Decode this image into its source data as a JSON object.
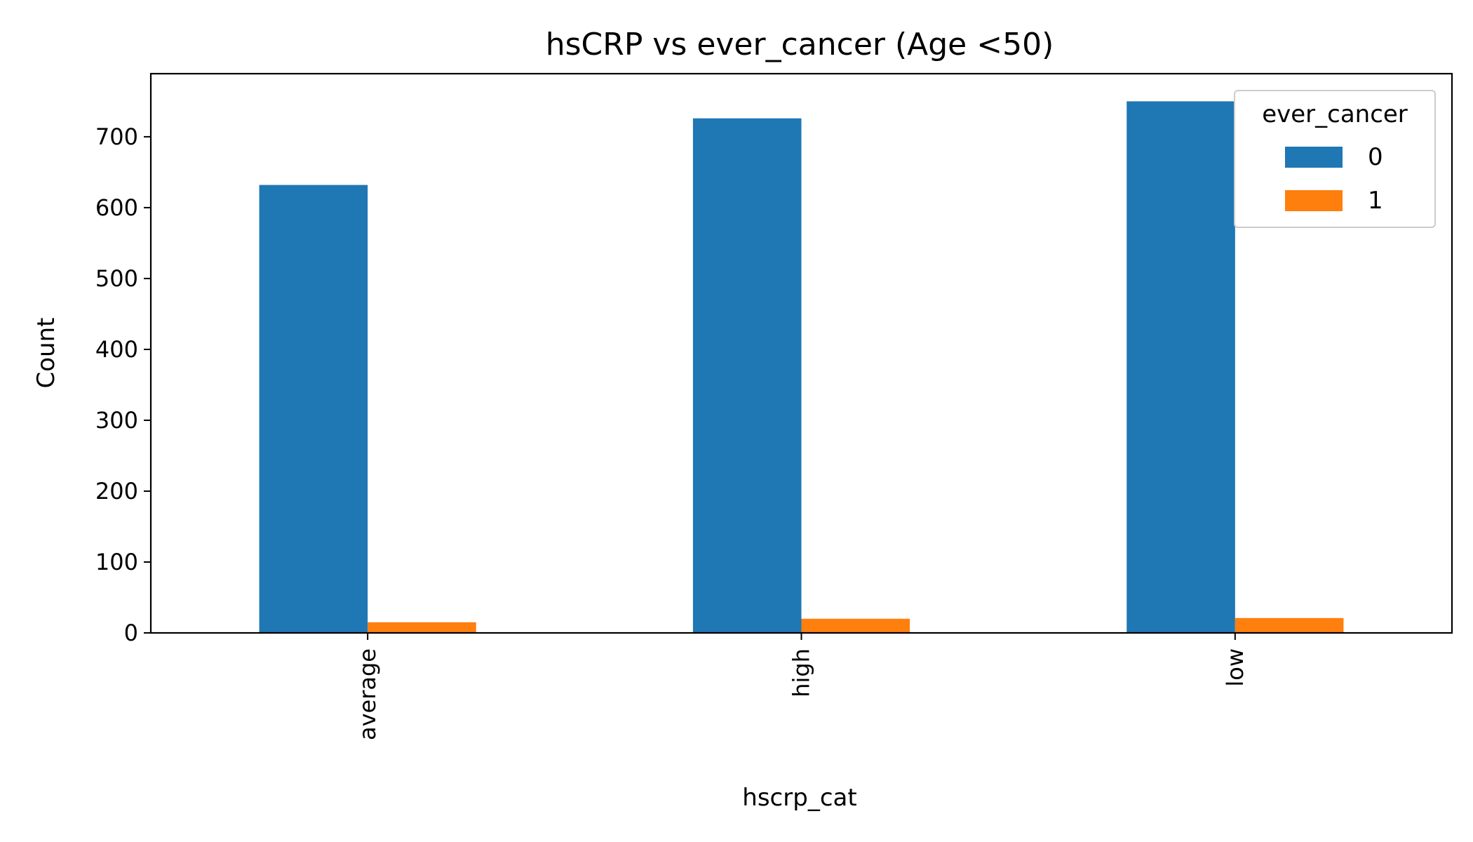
{
  "chart_data": {
    "type": "bar",
    "title": "hsCRP vs ever_cancer (Age <50)",
    "xlabel": "hscrp_cat",
    "ylabel": "Count",
    "categories": [
      "average",
      "high",
      "low"
    ],
    "series": [
      {
        "name": "0",
        "values": [
          632,
          726,
          750
        ],
        "color": "#1f77b4"
      },
      {
        "name": "1",
        "values": [
          15,
          20,
          21
        ],
        "color": "#ff7f0e"
      }
    ],
    "ylim": [
      0,
      789
    ],
    "yticks": [
      0,
      100,
      200,
      300,
      400,
      500,
      600,
      700
    ],
    "legend": {
      "title": "ever_cancer",
      "placement": "top-right"
    },
    "grid": false
  }
}
